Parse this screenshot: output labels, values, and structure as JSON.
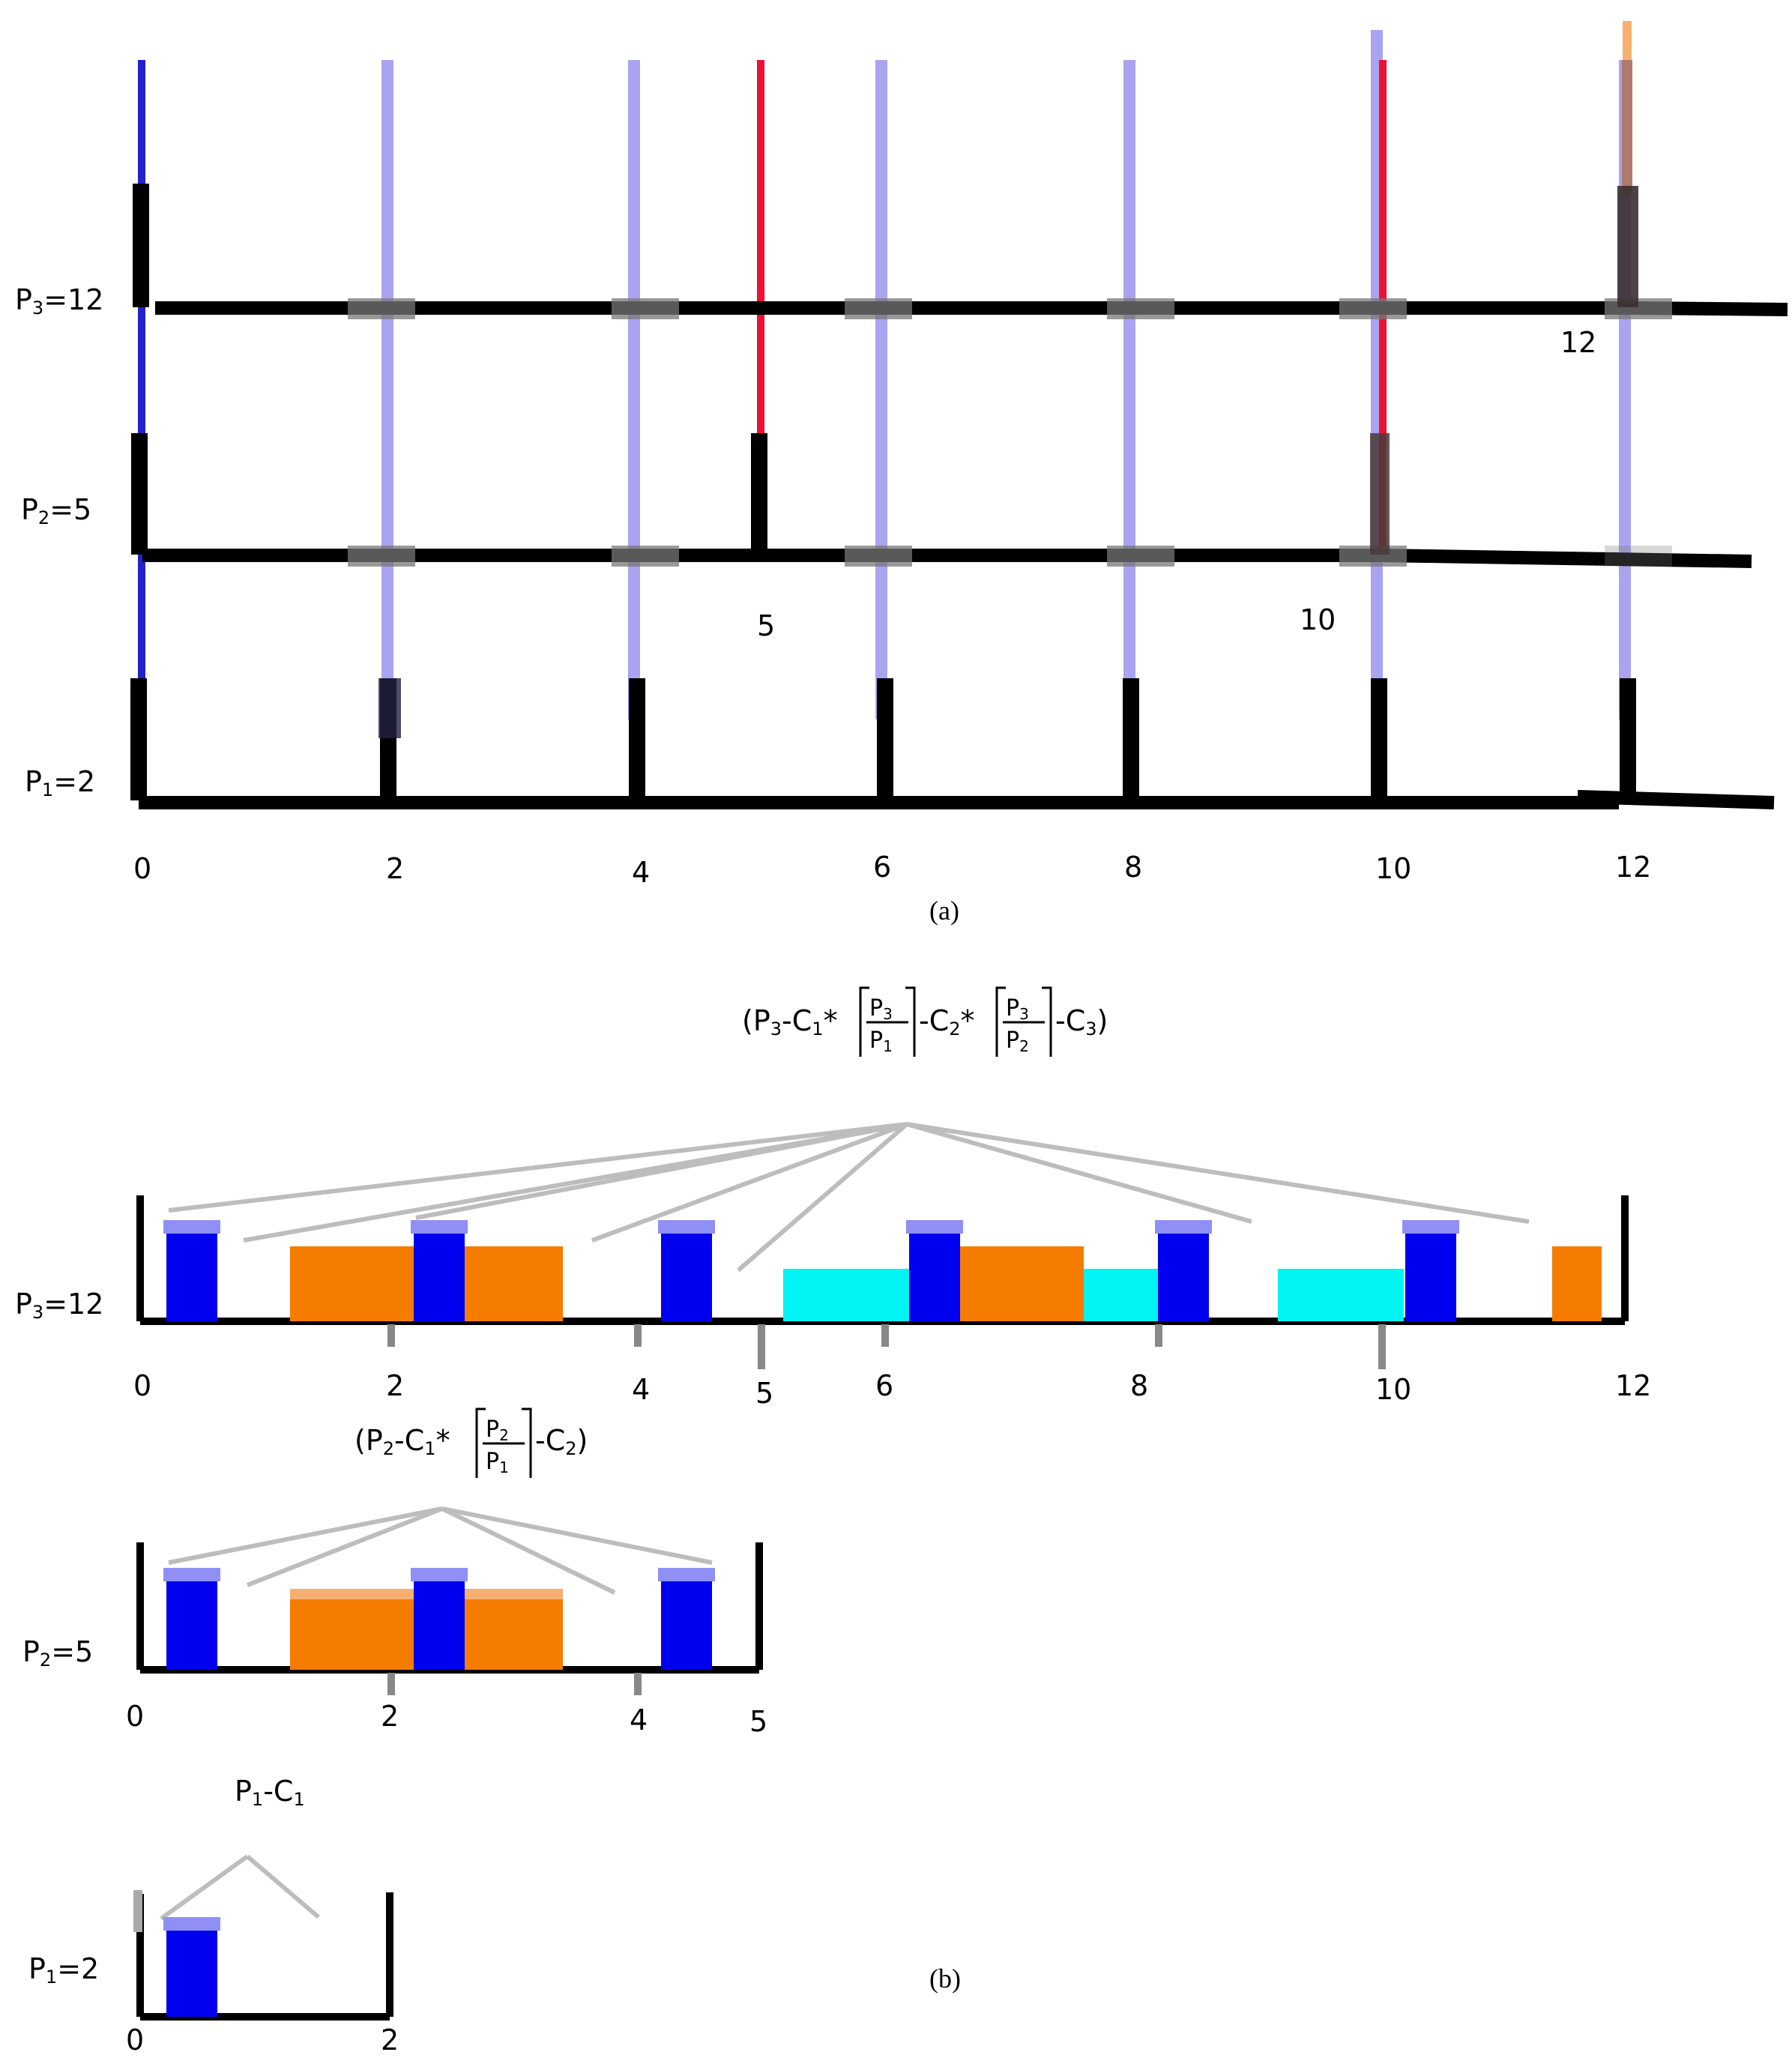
{
  "part_a": {
    "caption": "(a)",
    "x_ticks": [
      "0",
      "2",
      "4",
      "6",
      "8",
      "10",
      "12"
    ],
    "rows": [
      {
        "prefix": "P",
        "sub": "3",
        "suffix": "=12"
      },
      {
        "prefix": "P",
        "sub": "2",
        "suffix": "=5"
      },
      {
        "prefix": "P",
        "sub": "1",
        "suffix": "=2"
      }
    ],
    "annotations": {
      "p3_end": "12",
      "p2_first": "5",
      "p2_second": "10"
    }
  },
  "part_b": {
    "caption": "(b)",
    "p3": {
      "label": {
        "prefix": "P",
        "sub": "3",
        "suffix": "=12"
      },
      "x_ticks": [
        "0",
        "2",
        "4",
        "5",
        "6",
        "8",
        "10",
        "12"
      ],
      "formula": {
        "t1": "(P",
        "s1": "3",
        "t2": "-C",
        "s2": "1",
        "t3": "*",
        "f1_num": "P",
        "f1_num_sub": "3",
        "f1_den": "P",
        "f1_den_sub": "1",
        "t4": "-C",
        "s4": "2",
        "t5": "*",
        "f2_num": "P",
        "f2_num_sub": "3",
        "f2_den": "P",
        "f2_den_sub": "2",
        "t6": "-C",
        "s6": "3",
        "t7": ")"
      }
    },
    "p2": {
      "label": {
        "prefix": "P",
        "sub": "2",
        "suffix": "=5"
      },
      "x_ticks": [
        "0",
        "2",
        "4",
        "5"
      ],
      "formula": {
        "t1": "(P",
        "s1": "2",
        "t2": "-C",
        "s2": "1",
        "t3": "*",
        "f1_num": "P",
        "f1_num_sub": "2",
        "f1_den": "P",
        "f1_den_sub": "1",
        "t4": "-C",
        "s4": "2",
        "t5": ")"
      }
    },
    "p1": {
      "label": {
        "prefix": "P",
        "sub": "1",
        "suffix": "=2"
      },
      "x_ticks": [
        "0",
        "2"
      ],
      "formula": {
        "t1": "P",
        "s1": "1",
        "t2": "-C",
        "s2": "1"
      }
    }
  },
  "colors": {
    "blue": "#0000ee",
    "orange": "#f57c00",
    "cyan": "#00f4f4",
    "red": "#ee1133",
    "light_blue": "#a9a3f0",
    "black": "#000000",
    "gray": "#bdbdbd"
  }
}
